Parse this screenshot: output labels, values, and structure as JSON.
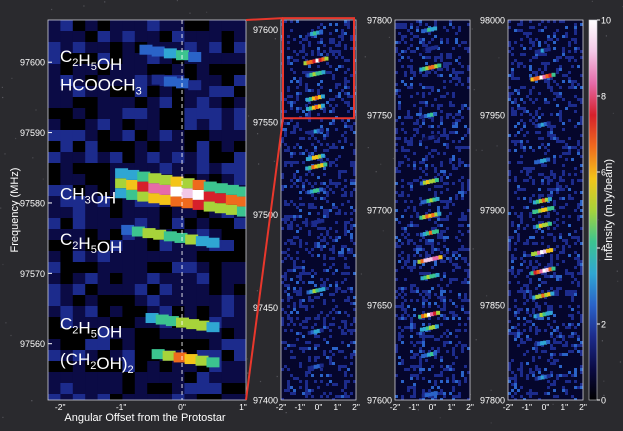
{
  "colors": {
    "background": "#2a2a2e",
    "panel_background": "#06072e",
    "zoom_box": "#e8372c",
    "tick_label": "#ffffff",
    "colormap": [
      "#000000",
      "#0b0b45",
      "#1c2b8c",
      "#2a63c8",
      "#2fa6d3",
      "#3cc48f",
      "#a7d33a",
      "#f3c419",
      "#ef6a1d",
      "#d6202b",
      "#e66aa8",
      "#f2c7e6",
      "#ffffff"
    ]
  },
  "figure": {
    "xlabel": "Angular Offset from the Protostar",
    "ylabel": "Frequency (MHz)",
    "colorbar_label": "Intensity (mJy/beam)"
  },
  "molecule_labels": [
    {
      "html": "C<sub>2</sub>H<sub>5</sub>OH",
      "base": "C",
      "parts": [
        [
          "C",
          ""
        ],
        [
          "2",
          "sub"
        ],
        [
          "H",
          ""
        ],
        [
          "5",
          "sub"
        ],
        [
          "OH",
          ""
        ]
      ]
    },
    {
      "parts": [
        [
          "HCOOCH",
          ""
        ],
        [
          "3",
          "sub"
        ]
      ]
    },
    {
      "parts": [
        [
          "CH",
          ""
        ],
        [
          "3",
          "sub"
        ],
        [
          "OH",
          ""
        ]
      ]
    },
    {
      "parts": [
        [
          "C",
          ""
        ],
        [
          "2",
          "sub"
        ],
        [
          "H",
          ""
        ],
        [
          "5",
          "sub"
        ],
        [
          "OH",
          ""
        ]
      ]
    },
    {
      "parts": [
        [
          "C",
          ""
        ],
        [
          "2",
          "sub"
        ],
        [
          "H",
          ""
        ],
        [
          "5",
          "sub"
        ],
        [
          "OH",
          ""
        ]
      ]
    },
    {
      "parts": [
        [
          "(CH",
          ""
        ],
        [
          "2",
          "sub"
        ],
        [
          "OH)",
          ""
        ],
        [
          "2",
          "sub"
        ]
      ]
    }
  ],
  "chart_data": [
    {
      "type": "heatmap",
      "panel": "zoom",
      "xlabel": "Angular Offset from the Protostar",
      "ylabel": "Frequency (MHz)",
      "xlim": [
        -2.2,
        1.05
      ],
      "ylim": [
        97552,
        97606
      ],
      "x_ticks": [
        "-2\"",
        "-1\"",
        "0\"",
        "1\""
      ],
      "y_ticks": [
        "97560",
        "97570",
        "97580",
        "97590",
        "97600"
      ],
      "features": [
        {
          "label": "C2H5OH",
          "freq": 97601,
          "offset_start": -0.6,
          "offset_end": 0.2,
          "peak_intensity": 4
        },
        {
          "label": "HCOOCH3",
          "freq": 97597,
          "offset_start": -0.4,
          "offset_end": 0.2,
          "peak_intensity": 3
        },
        {
          "label": "CH3OH",
          "freq": 97581.5,
          "offset_start": -1.0,
          "offset_end": 1.0,
          "peak_intensity": 10
        },
        {
          "label": "C2H5OH",
          "freq": 97575,
          "offset_start": -0.9,
          "offset_end": 0.5,
          "peak_intensity": 5
        },
        {
          "label": "C2H5OH",
          "freq": 97563,
          "offset_start": -0.5,
          "offset_end": 0.5,
          "peak_intensity": 6
        },
        {
          "label": "(CH2OH)2",
          "freq": 97558,
          "offset_start": -0.4,
          "offset_end": 0.5,
          "peak_intensity": 7
        }
      ]
    },
    {
      "type": "heatmap",
      "panel": "band-1",
      "ylim": [
        97400,
        97605
      ],
      "xlim": [
        -2,
        2
      ],
      "x_ticks": [
        "-2\"",
        "-1\"",
        "0\"",
        "1\"",
        "2\""
      ],
      "y_ticks": [
        "97400",
        "97450",
        "97500",
        "97550",
        "97600"
      ],
      "features": [
        {
          "freq": 97598,
          "peak_intensity": 4
        },
        {
          "freq": 97583,
          "peak_intensity": 10
        },
        {
          "freq": 97576,
          "peak_intensity": 5
        },
        {
          "freq": 97563,
          "peak_intensity": 6
        },
        {
          "freq": 97558,
          "peak_intensity": 6
        },
        {
          "freq": 97545,
          "peak_intensity": 3
        },
        {
          "freq": 97531,
          "peak_intensity": 6
        },
        {
          "freq": 97526,
          "peak_intensity": 7
        },
        {
          "freq": 97513,
          "peak_intensity": 4
        },
        {
          "freq": 97496,
          "peak_intensity": 2
        },
        {
          "freq": 97459,
          "peak_intensity": 5
        },
        {
          "freq": 97437,
          "peak_intensity": 3
        },
        {
          "freq": 97418,
          "peak_intensity": 3
        }
      ]
    },
    {
      "type": "heatmap",
      "panel": "band-2",
      "ylim": [
        97600,
        97800
      ],
      "xlim": [
        -2,
        2
      ],
      "x_ticks": [
        "-2\"",
        "-1\"",
        "0\"",
        "1\"",
        "2\""
      ],
      "y_ticks": [
        "97600",
        "97650",
        "97700",
        "97750",
        "97800"
      ],
      "features": [
        {
          "freq": 97795,
          "peak_intensity": 4
        },
        {
          "freq": 97785,
          "peak_intensity": 2
        },
        {
          "freq": 97775,
          "peak_intensity": 7
        },
        {
          "freq": 97750,
          "peak_intensity": 4
        },
        {
          "freq": 97738,
          "peak_intensity": 2
        },
        {
          "freq": 97715,
          "peak_intensity": 6
        },
        {
          "freq": 97705,
          "peak_intensity": 5
        },
        {
          "freq": 97697,
          "peak_intensity": 7
        },
        {
          "freq": 97688,
          "peak_intensity": 6
        },
        {
          "freq": 97674,
          "peak_intensity": 10
        },
        {
          "freq": 97665,
          "peak_intensity": 5
        },
        {
          "freq": 97645,
          "peak_intensity": 9
        },
        {
          "freq": 97638,
          "peak_intensity": 6
        },
        {
          "freq": 97624,
          "peak_intensity": 4
        },
        {
          "freq": 97603,
          "peak_intensity": 3
        }
      ]
    },
    {
      "type": "heatmap",
      "panel": "band-3",
      "ylim": [
        97800,
        98000
      ],
      "xlim": [
        -2,
        2
      ],
      "x_ticks": [
        "-2\"",
        "-1\"",
        "0\"",
        "1\"",
        "2\""
      ],
      "y_ticks": [
        "97800",
        "97850",
        "97900",
        "97950",
        "98000"
      ],
      "features": [
        {
          "freq": 97984,
          "peak_intensity": 3
        },
        {
          "freq": 97970,
          "peak_intensity": 10
        },
        {
          "freq": 97945,
          "peak_intensity": 3
        },
        {
          "freq": 97926,
          "peak_intensity": 4
        },
        {
          "freq": 97905,
          "peak_intensity": 6
        },
        {
          "freq": 97900,
          "peak_intensity": 7
        },
        {
          "freq": 97892,
          "peak_intensity": 6
        },
        {
          "freq": 97878,
          "peak_intensity": 9
        },
        {
          "freq": 97868,
          "peak_intensity": 10
        },
        {
          "freq": 97855,
          "peak_intensity": 7
        },
        {
          "freq": 97845,
          "peak_intensity": 5
        },
        {
          "freq": 97830,
          "peak_intensity": 4
        },
        {
          "freq": 97812,
          "peak_intensity": 3
        }
      ]
    },
    {
      "type": "colorbar",
      "label": "Intensity (mJy/beam)",
      "range": [
        0,
        10
      ],
      "ticks": [
        "0",
        "2",
        "4",
        "6",
        "8",
        "10"
      ]
    }
  ]
}
